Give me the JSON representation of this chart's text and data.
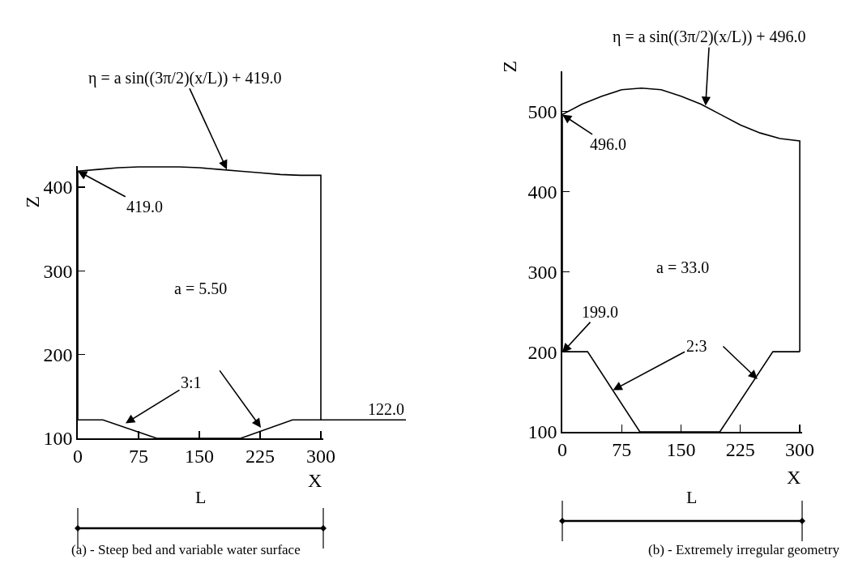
{
  "chart_data": [
    {
      "type": "line",
      "xlabel": "X",
      "ylabel": "Z",
      "xlim": [
        0,
        303
      ],
      "ylim": [
        100,
        425
      ],
      "xticks": [
        0,
        75,
        150,
        225,
        300
      ],
      "yticks": [
        100,
        200,
        300,
        400
      ],
      "grid": false,
      "marker": "none",
      "line_style": "solid",
      "series": [
        {
          "color": "#000000",
          "x": [
            0,
            0,
            25,
            50,
            75,
            100,
            125,
            150,
            175,
            200,
            225,
            250,
            275,
            300,
            300
          ],
          "values": [
            122,
            419,
            421,
            423,
            424,
            424,
            424,
            423,
            421,
            419,
            417,
            415,
            414,
            414,
            122
          ]
        },
        {
          "color": "#000000",
          "x": [
            0,
            31,
            97.5,
            201,
            265,
            300
          ],
          "values": [
            122,
            122,
            100,
            100,
            122,
            122
          ]
        }
      ],
      "annotations": [
        {
          "text": "η = a sin((3π/2)(x/L)) + 419.0",
          "x": 184,
          "y": 421
        },
        {
          "text": "419.0",
          "x": 0,
          "y": 419
        },
        {
          "text": "3:1",
          "x": 59,
          "y": 118
        },
        {
          "text": "122.0",
          "x": 300,
          "y": 122
        },
        "a = 5.50",
        "L",
        "(a) - Steep bed and variable water surface"
      ]
    },
    {
      "type": "line",
      "xlabel": "X",
      "ylabel": "Z",
      "xlim": [
        0,
        303
      ],
      "ylim": [
        100,
        550
      ],
      "xticks": [
        0,
        75,
        150,
        225,
        300
      ],
      "yticks": [
        100,
        200,
        300,
        400,
        500
      ],
      "grid": false,
      "marker": "none",
      "line_style": "solid",
      "series": [
        {
          "color": "#000000",
          "x": [
            0,
            0,
            25,
            50,
            75,
            100,
            125,
            150,
            175,
            200,
            225,
            250,
            275,
            300,
            300
          ],
          "values": [
            199,
            496,
            509,
            519,
            527,
            529,
            527,
            519,
            509,
            496,
            483,
            473,
            466,
            463,
            200
          ]
        },
        {
          "color": "#000000",
          "x": [
            0,
            32,
            98,
            199,
            266,
            300
          ],
          "values": [
            200,
            200,
            100,
            100,
            200,
            200
          ]
        }
      ],
      "annotations": [
        {
          "text": "η = a sin((3π/2)(x/L)) + 496.0",
          "x": 181,
          "y": 507
        },
        {
          "text": "496.0",
          "x": 0,
          "y": 496
        },
        {
          "text": "199.0",
          "x": 0,
          "y": 199
        },
        {
          "text": "2:3",
          "x": 64,
          "y": 152
        },
        "a = 33.0",
        "L",
        "(b) - Extremely irregular geometry"
      ]
    }
  ]
}
